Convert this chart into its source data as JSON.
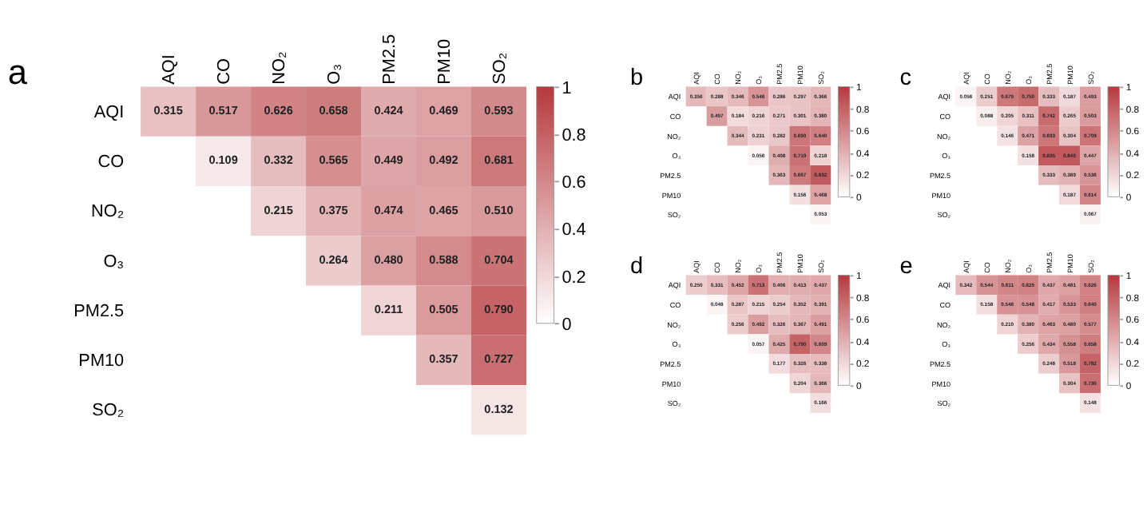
{
  "chart_data": [
    {
      "type": "heatmap",
      "title": "a",
      "categories": [
        "AQI",
        "CO",
        "NO₂",
        "O₃",
        "PM2.5",
        "PM10",
        "SO₂"
      ],
      "y_categories": [
        "AQI",
        "CO",
        "NO₂",
        "O₃",
        "PM2.5",
        "PM10",
        "SO₂"
      ],
      "cells": [
        [
          0.315,
          0.517,
          0.626,
          0.658,
          0.424,
          0.469,
          0.593
        ],
        [
          null,
          0.109,
          0.332,
          0.565,
          0.449,
          0.492,
          0.681
        ],
        [
          null,
          null,
          0.215,
          0.375,
          0.474,
          0.465,
          0.51
        ],
        [
          null,
          null,
          null,
          0.264,
          0.48,
          0.588,
          0.704
        ],
        [
          null,
          null,
          null,
          null,
          0.211,
          0.505,
          0.79
        ],
        [
          null,
          null,
          null,
          null,
          null,
          0.357,
          0.727
        ],
        [
          null,
          null,
          null,
          null,
          null,
          null,
          0.132
        ]
      ],
      "cell_labels": [
        [
          "0.315",
          "0.517",
          "0.626",
          "0.658",
          "0.424",
          "0.469",
          "0.593"
        ],
        [
          null,
          "0.109",
          "0.332",
          "0.565",
          "0.449",
          "0.492",
          "0.681"
        ],
        [
          null,
          null,
          "0.215",
          "0.375",
          "0.474",
          "0.465",
          "0.510"
        ],
        [
          null,
          null,
          null,
          "0.264",
          "0.480",
          "0.588",
          "0.704"
        ],
        [
          null,
          null,
          null,
          null,
          "0.211",
          "0.505",
          "0.790"
        ],
        [
          null,
          null,
          null,
          null,
          null,
          "0.357",
          "0.727"
        ],
        [
          null,
          null,
          null,
          null,
          null,
          null,
          "0.132"
        ]
      ],
      "data_labels": true,
      "clim": [
        0,
        1
      ],
      "cticks": [
        0,
        0.2,
        0.4,
        0.6,
        0.8,
        1
      ]
    },
    {
      "type": "heatmap",
      "title": "b",
      "categories": [
        "AQI",
        "CO",
        "NO₂",
        "O₃",
        "PM2.5",
        "PM10",
        "SO₂"
      ],
      "y_categories": [
        "AQI",
        "CO",
        "NO₂",
        "O₃",
        "PM2.5",
        "PM10",
        "SO₂"
      ],
      "cells": [
        [
          0.356,
          0.288,
          0.346,
          0.546,
          0.286,
          0.297,
          0.366
        ],
        [
          null,
          0.497,
          0.184,
          0.216,
          0.271,
          0.301,
          0.38
        ],
        [
          null,
          null,
          0.344,
          0.231,
          0.282,
          0.69,
          0.64
        ],
        [
          null,
          null,
          null,
          0.056,
          0.408,
          0.71,
          0.218
        ],
        [
          null,
          null,
          null,
          null,
          0.363,
          0.667,
          0.832
        ],
        [
          null,
          null,
          null,
          null,
          null,
          0.156,
          0.468
        ],
        [
          null,
          null,
          null,
          null,
          null,
          null,
          0.053
        ]
      ],
      "cell_labels": [
        [
          "0.356",
          "0.288",
          "0.346",
          "0.546",
          "0.286",
          "0.297",
          "0.366"
        ],
        [
          null,
          "0.497",
          "0.184",
          "0.216",
          "0.271",
          "0.301",
          "0.380"
        ],
        [
          null,
          null,
          "0.344",
          "0.231",
          "0.282",
          "0.690",
          "0.640"
        ],
        [
          null,
          null,
          null,
          "0.056",
          "0.408",
          "0.710",
          "0.218"
        ],
        [
          null,
          null,
          null,
          null,
          "0.363",
          "0.667",
          "0.832"
        ],
        [
          null,
          null,
          null,
          null,
          null,
          "0.156",
          "0.468"
        ],
        [
          null,
          null,
          null,
          null,
          null,
          null,
          "0.053"
        ]
      ],
      "data_labels": true,
      "clim": [
        0,
        1
      ],
      "cticks": [
        0,
        0.2,
        0.4,
        0.6,
        0.8,
        1
      ]
    },
    {
      "type": "heatmap",
      "title": "c",
      "categories": [
        "AQI",
        "CO",
        "NO₂",
        "O₃",
        "PM2.5",
        "PM10",
        "SO₂"
      ],
      "y_categories": [
        "AQI",
        "CO",
        "NO₂",
        "O₃",
        "PM2.5",
        "PM10",
        "SO₂"
      ],
      "cells": [
        [
          0.056,
          0.251,
          0.679,
          0.75,
          0.333,
          0.187,
          0.493
        ],
        [
          null,
          0.088,
          0.205,
          0.311,
          0.742,
          0.265,
          0.503
        ],
        [
          null,
          null,
          0.146,
          0.471,
          0.693,
          0.304,
          0.709
        ],
        [
          null,
          null,
          null,
          0.158,
          0.835,
          0.84,
          0.447
        ],
        [
          null,
          null,
          null,
          null,
          0.333,
          0.389,
          0.536
        ],
        [
          null,
          null,
          null,
          null,
          null,
          0.187,
          0.614
        ],
        [
          null,
          null,
          null,
          null,
          null,
          null,
          0.067
        ]
      ],
      "cell_labels": [
        [
          "0.056",
          "0.251",
          "0.679",
          "0.750",
          "0.333",
          "0.187",
          "0.493"
        ],
        [
          null,
          "0.088",
          "0.205",
          "0.311",
          "0.742",
          "0.265",
          "0.503"
        ],
        [
          null,
          null,
          "0.146",
          "0.471",
          "0.693",
          "0.304",
          "0.709"
        ],
        [
          null,
          null,
          null,
          "0.158",
          "0.835",
          "0.840",
          "0.447"
        ],
        [
          null,
          null,
          null,
          null,
          "0.333",
          "0.389",
          "0.536"
        ],
        [
          null,
          null,
          null,
          null,
          null,
          "0.187",
          "0.614"
        ],
        [
          null,
          null,
          null,
          null,
          null,
          null,
          "0.067"
        ]
      ],
      "data_labels": true,
      "clim": [
        0,
        1
      ],
      "cticks": [
        0,
        0.2,
        0.4,
        0.6,
        0.8,
        1
      ]
    },
    {
      "type": "heatmap",
      "title": "d",
      "categories": [
        "AQI",
        "CO",
        "NO₂",
        "O₃",
        "PM2.5",
        "PM10",
        "SO₂"
      ],
      "y_categories": [
        "AQI",
        "CO",
        "NO₂",
        "O₃",
        "PM2.5",
        "PM10",
        "SO₂"
      ],
      "cells": [
        [
          0.25,
          0.331,
          0.452,
          0.713,
          0.406,
          0.413,
          0.437
        ],
        [
          null,
          0.048,
          0.287,
          0.215,
          0.254,
          0.352,
          0.391
        ],
        [
          null,
          null,
          0.256,
          0.492,
          0.326,
          0.367,
          0.491
        ],
        [
          null,
          null,
          null,
          0.057,
          0.425,
          0.79,
          0.609
        ],
        [
          null,
          null,
          null,
          null,
          0.177,
          0.326,
          0.338
        ],
        [
          null,
          null,
          null,
          null,
          null,
          0.204,
          0.366
        ],
        [
          null,
          null,
          null,
          null,
          null,
          null,
          0.166
        ]
      ],
      "cell_labels": [
        [
          "0.250",
          "0.331",
          "0.452",
          "0.713",
          "0.406",
          "0.413",
          "0.437"
        ],
        [
          null,
          "0.048",
          "0.287",
          "0.215",
          "0.254",
          "0.352",
          "0.391"
        ],
        [
          null,
          null,
          "0.256",
          "0.492",
          "0.326",
          "0.367",
          "0.491"
        ],
        [
          null,
          null,
          null,
          "0.057",
          "0.425",
          "0.790",
          "0.609"
        ],
        [
          null,
          null,
          null,
          null,
          "0.177",
          "0.326",
          "0.338"
        ],
        [
          null,
          null,
          null,
          null,
          null,
          "0.204",
          "0.366"
        ],
        [
          null,
          null,
          null,
          null,
          null,
          null,
          "0.166"
        ]
      ],
      "data_labels": true,
      "clim": [
        0,
        1
      ],
      "cticks": [
        0,
        0.2,
        0.4,
        0.6,
        0.8,
        1
      ]
    },
    {
      "type": "heatmap",
      "title": "e",
      "categories": [
        "AQI",
        "CO",
        "NO₂",
        "O₃",
        "PM2.5",
        "PM10",
        "SO₂"
      ],
      "y_categories": [
        "AQI",
        "CO",
        "NO₂",
        "O₃",
        "PM2.5",
        "PM10",
        "SO₂"
      ],
      "cells": [
        [
          0.342,
          0.544,
          0.611,
          0.629,
          0.437,
          0.481,
          0.626
        ],
        [
          null,
          0.158,
          0.548,
          0.548,
          0.417,
          0.533,
          0.64
        ],
        [
          null,
          null,
          0.21,
          0.38,
          0.463,
          0.48,
          0.577
        ],
        [
          null,
          null,
          null,
          0.256,
          0.434,
          0.558,
          0.658
        ],
        [
          null,
          null,
          null,
          null,
          0.248,
          0.518,
          0.782
        ],
        [
          null,
          null,
          null,
          null,
          null,
          0.304,
          0.73
        ],
        [
          null,
          null,
          null,
          null,
          null,
          null,
          0.148
        ]
      ],
      "cell_labels": [
        [
          "0.342",
          "0.544",
          "0.611",
          "0.629",
          "0.437",
          "0.481",
          "0.626"
        ],
        [
          null,
          "0.158",
          "0.548",
          "0.548",
          "0.417",
          "0.533",
          "0.640"
        ],
        [
          null,
          null,
          "0.210",
          "0.380",
          "0.463",
          "0.480",
          "0.577"
        ],
        [
          null,
          null,
          null,
          "0.256",
          "0.434",
          "0.558",
          "0.658"
        ],
        [
          null,
          null,
          null,
          null,
          "0.248",
          "0.518",
          "0.782"
        ],
        [
          null,
          null,
          null,
          null,
          null,
          "0.304",
          "0.730"
        ],
        [
          null,
          null,
          null,
          null,
          null,
          null,
          "0.148"
        ]
      ],
      "data_labels": true,
      "clim": [
        0,
        1
      ],
      "cticks": [
        0,
        0.2,
        0.4,
        0.6,
        0.8,
        1
      ]
    }
  ]
}
